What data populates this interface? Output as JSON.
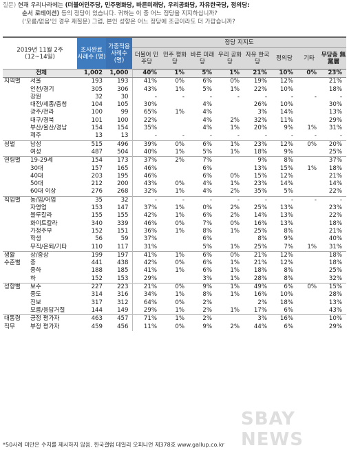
{
  "question": {
    "label": "질문)",
    "line1_pre": "현재 우리나라에는 ",
    "line1_bold": "(더불어민주당, 민주평화당, 바른미래당, 우리공화당, 자유한국당, 정의당:",
    "line2_bold": "순서 로테이션)",
    "line2_rest": " 등의 정당이 있습니다. 귀하는 이 중 어느 정당을 지지하십니까?",
    "line3": "('모름/없음'인 경우 재질문) 그럼, 본인 성향은 어느 정당에 조금이라도 더 가깝습니까?"
  },
  "header": {
    "period": "2019년 11월 2주",
    "period_sub": "(12~14일)",
    "col_sample": "조사완료 사례수 (명)",
    "col_weighted": "가중적용 사례수 (명)",
    "group_title": "정당 지지도",
    "parties": [
      "더불어 민주당",
      "민주 평화당",
      "바른 미래당",
      "우리 공화당",
      "자유 한국당",
      "정의당",
      "기타",
      "무당층 無黨層"
    ]
  },
  "rows": [
    {
      "g": "전체",
      "s": "",
      "n1": "1,002",
      "n2": "1,000",
      "v": [
        "40%",
        "1%",
        "5%",
        "1%",
        "21%",
        "10%",
        "0%",
        "23%"
      ],
      "total": true
    },
    {
      "g": "지역별",
      "s": "서울",
      "n1": "193",
      "n2": "193",
      "v": [
        "41%",
        "0%",
        "6%",
        "0%",
        "19%",
        "12%",
        "",
        "21%"
      ]
    },
    {
      "g": "",
      "s": "인천/경기",
      "n1": "305",
      "n2": "306",
      "v": [
        "43%",
        "1%",
        "5%",
        "1%",
        "22%",
        "10%",
        "",
        "18%"
      ]
    },
    {
      "g": "",
      "s": "강원",
      "n1": "32",
      "n2": "30",
      "v": [
        "-",
        "-",
        "-",
        "-",
        "-",
        "-",
        "-",
        "-"
      ]
    },
    {
      "g": "",
      "s": "대전/세종/충청",
      "n1": "104",
      "n2": "105",
      "v": [
        "30%",
        "",
        "4%",
        "",
        "26%",
        "10%",
        "",
        "30%"
      ]
    },
    {
      "g": "",
      "s": "광주/전라",
      "n1": "100",
      "n2": "99",
      "v": [
        "65%",
        "1%",
        "4%",
        "",
        "3%",
        "14%",
        "",
        "13%"
      ]
    },
    {
      "g": "",
      "s": "대구/경북",
      "n1": "101",
      "n2": "100",
      "v": [
        "22%",
        "",
        "4%",
        "2%",
        "32%",
        "11%",
        "",
        "29%"
      ]
    },
    {
      "g": "",
      "s": "부산/울산/경남",
      "n1": "154",
      "n2": "154",
      "v": [
        "35%",
        "",
        "4%",
        "1%",
        "20%",
        "9%",
        "1%",
        "31%"
      ]
    },
    {
      "g": "",
      "s": "제주",
      "n1": "13",
      "n2": "13",
      "v": [
        "-",
        "-",
        "-",
        "-",
        "-",
        "-",
        "-",
        "-"
      ]
    },
    {
      "g": "성별",
      "s": "남성",
      "n1": "515",
      "n2": "496",
      "v": [
        "39%",
        "0%",
        "6%",
        "1%",
        "23%",
        "12%",
        "0%",
        "20%"
      ],
      "sep": true
    },
    {
      "g": "",
      "s": "여성",
      "n1": "487",
      "n2": "504",
      "v": [
        "40%",
        "1%",
        "5%",
        "1%",
        "18%",
        "9%",
        "",
        "25%"
      ]
    },
    {
      "g": "연령별",
      "s": "19-29세",
      "n1": "154",
      "n2": "173",
      "v": [
        "37%",
        "2%",
        "7%",
        "",
        "9%",
        "8%",
        "",
        "37%"
      ],
      "sep": true
    },
    {
      "g": "",
      "s": "30대",
      "n1": "157",
      "n2": "165",
      "v": [
        "46%",
        "",
        "6%",
        "",
        "13%",
        "15%",
        "1%",
        "18%"
      ]
    },
    {
      "g": "",
      "s": "40대",
      "n1": "203",
      "n2": "195",
      "v": [
        "46%",
        "",
        "6%",
        "0%",
        "15%",
        "12%",
        "",
        "21%"
      ]
    },
    {
      "g": "",
      "s": "50대",
      "n1": "212",
      "n2": "200",
      "v": [
        "43%",
        "0%",
        "4%",
        "1%",
        "23%",
        "14%",
        "",
        "14%"
      ]
    },
    {
      "g": "",
      "s": "60대 이상",
      "n1": "276",
      "n2": "268",
      "v": [
        "32%",
        "1%",
        "4%",
        "2%",
        "35%",
        "5%",
        "",
        "22%"
      ]
    },
    {
      "g": "직업별",
      "s": "농/임/어업",
      "n1": "35",
      "n2": "32",
      "v": [
        "-",
        "-",
        "-",
        "-",
        "-",
        "-",
        "-",
        "-"
      ],
      "sep": true
    },
    {
      "g": "",
      "s": "자영업",
      "n1": "153",
      "n2": "147",
      "v": [
        "37%",
        "1%",
        "0%",
        "2%",
        "25%",
        "13%",
        "",
        "23%"
      ]
    },
    {
      "g": "",
      "s": "블루칼라",
      "n1": "155",
      "n2": "155",
      "v": [
        "42%",
        "1%",
        "6%",
        "2%",
        "14%",
        "13%",
        "",
        "22%"
      ]
    },
    {
      "g": "",
      "s": "화이트칼라",
      "n1": "340",
      "n2": "339",
      "v": [
        "46%",
        "0%",
        "7%",
        "0%",
        "16%",
        "13%",
        "",
        "18%"
      ]
    },
    {
      "g": "",
      "s": "가정주부",
      "n1": "152",
      "n2": "151",
      "v": [
        "36%",
        "1%",
        "8%",
        "1%",
        "25%",
        "8%",
        "",
        "21%"
      ]
    },
    {
      "g": "",
      "s": "학생",
      "n1": "56",
      "n2": "59",
      "v": [
        "37%",
        "",
        "6%",
        "",
        "8%",
        "9%",
        "",
        "40%"
      ]
    },
    {
      "g": "",
      "s": "무직/은퇴/기타",
      "n1": "110",
      "n2": "117",
      "v": [
        "31%",
        "",
        "5%",
        "1%",
        "25%",
        "7%",
        "1%",
        "31%"
      ]
    },
    {
      "g": "생활",
      "s": "상/중상",
      "n1": "199",
      "n2": "197",
      "v": [
        "41%",
        "1%",
        "6%",
        "0%",
        "21%",
        "12%",
        "",
        "18%"
      ],
      "sep": true
    },
    {
      "g": "수준별",
      "s": "중",
      "n1": "441",
      "n2": "438",
      "v": [
        "42%",
        "0%",
        "6%",
        "1%",
        "21%",
        "12%",
        "",
        "18%"
      ]
    },
    {
      "g": "",
      "s": "중하",
      "n1": "188",
      "n2": "185",
      "v": [
        "41%",
        "1%",
        "6%",
        "1%",
        "18%",
        "8%",
        "",
        "25%"
      ]
    },
    {
      "g": "",
      "s": "하",
      "n1": "152",
      "n2": "153",
      "v": [
        "29%",
        "",
        "3%",
        "1%",
        "28%",
        "8%",
        "",
        "32%"
      ]
    },
    {
      "g": "성향별",
      "s": "보수",
      "n1": "227",
      "n2": "223",
      "v": [
        "21%",
        "0%",
        "9%",
        "1%",
        "49%",
        "6%",
        "0%",
        "15%"
      ],
      "sep": true
    },
    {
      "g": "",
      "s": "중도",
      "n1": "314",
      "n2": "316",
      "v": [
        "34%",
        "1%",
        "8%",
        "1%",
        "16%",
        "10%",
        "",
        "28%"
      ]
    },
    {
      "g": "",
      "s": "진보",
      "n1": "317",
      "n2": "312",
      "v": [
        "64%",
        "0%",
        "2%",
        "",
        "2%",
        "18%",
        "",
        "13%"
      ]
    },
    {
      "g": "",
      "s": "모름/응답거절",
      "n1": "144",
      "n2": "149",
      "v": [
        "29%",
        "1%",
        "2%",
        "1%",
        "17%",
        "6%",
        "",
        "43%"
      ]
    },
    {
      "g": "대통령",
      "s": "긍정 평가자",
      "n1": "463",
      "n2": "457",
      "v": [
        "71%",
        "1%",
        "2%",
        "",
        "3%",
        "16%",
        "",
        "10%"
      ],
      "sep": true
    },
    {
      "g": "직무",
      "s": "부정 평가자",
      "n1": "459",
      "n2": "456",
      "v": [
        "11%",
        "0%",
        "9%",
        "2%",
        "44%",
        "6%",
        "",
        "29%"
      ]
    }
  ],
  "footer": "*50사례 미만은 수치를 제시하지 않음. 한국갤럽 데일리 오피니언 제378호 www.gallup.co.kr",
  "watermark": "SBAY NEWS",
  "colors": {
    "header_blue": "#3f7bbf",
    "header_gray": "#d9d9d9",
    "total_bg": "#e6e6e6"
  }
}
